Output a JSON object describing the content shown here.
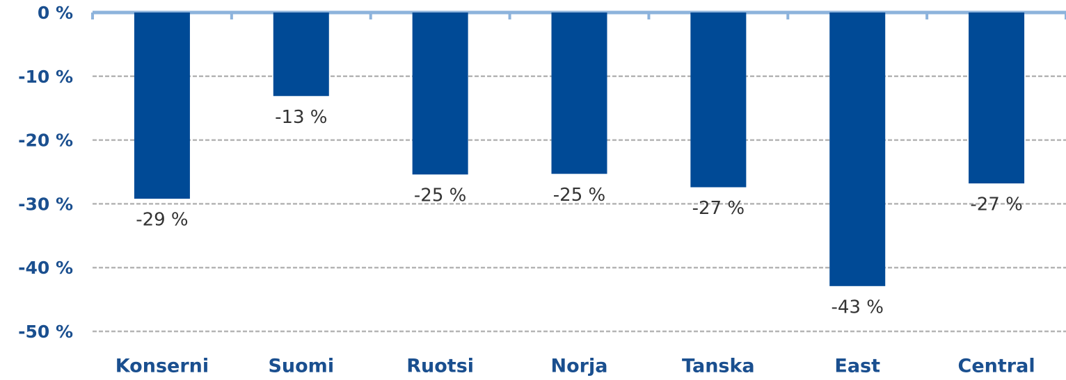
{
  "chart_data": {
    "type": "bar",
    "categories": [
      "Konserni",
      "Suomi",
      "Ruotsi",
      "Norja",
      "Tanska",
      "East",
      "Central"
    ],
    "values": [
      -29.2,
      -13.1,
      -25.4,
      -25.3,
      -27.4,
      -42.9,
      -26.8
    ],
    "value_labels": [
      "-29 %",
      "-13 %",
      "-25 %",
      "-25 %",
      "-27 %",
      "-43 %",
      "-27 %"
    ],
    "color": "#004a96",
    "ylim": [
      -50,
      0
    ],
    "yticks": [
      {
        "value": 0,
        "label": "0 %"
      },
      {
        "value": -10,
        "label": "-10 %"
      },
      {
        "value": -20,
        "label": "-20 %"
      },
      {
        "value": -30,
        "label": "-30 %"
      },
      {
        "value": -40,
        "label": "-40 %"
      },
      {
        "value": -50,
        "label": "-50 %"
      }
    ],
    "grid": true
  }
}
